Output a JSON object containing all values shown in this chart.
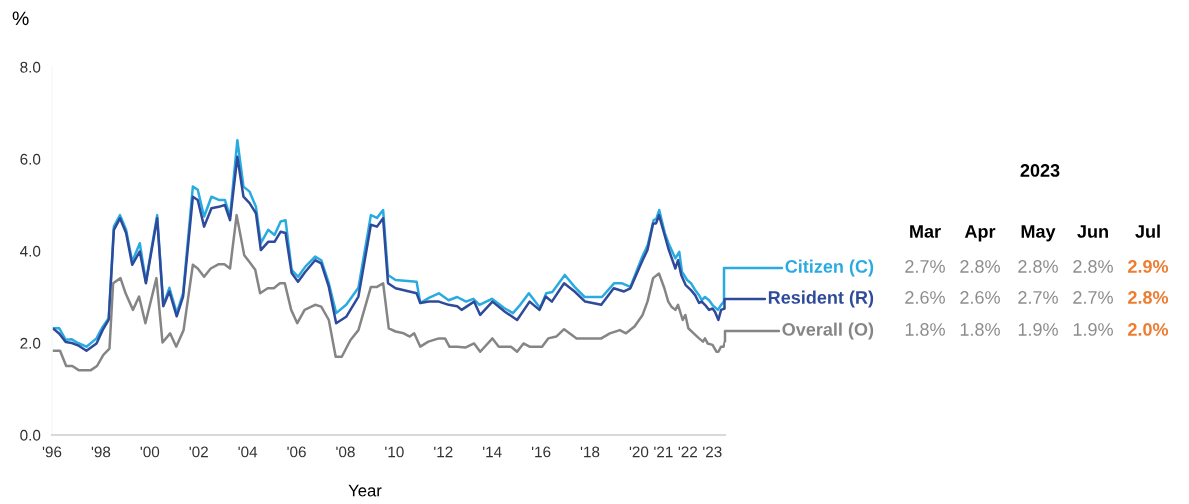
{
  "chart_data": {
    "type": "line",
    "ylabel": "%",
    "xlabel": "Year",
    "xlim": [
      1996,
      2023.52
    ],
    "ylim": [
      0,
      8
    ],
    "xticks": [
      {
        "value": 1996,
        "label": "'96"
      },
      {
        "value": 1998,
        "label": "'98"
      },
      {
        "value": 2000,
        "label": "'00"
      },
      {
        "value": 2002,
        "label": "'02"
      },
      {
        "value": 2004,
        "label": "'04"
      },
      {
        "value": 2006,
        "label": "'06"
      },
      {
        "value": 2008,
        "label": "'08"
      },
      {
        "value": 2010,
        "label": "'10"
      },
      {
        "value": 2012,
        "label": "'12"
      },
      {
        "value": 2014,
        "label": "'14"
      },
      {
        "value": 2016,
        "label": "'16"
      },
      {
        "value": 2018,
        "label": "'18"
      },
      {
        "value": 2020,
        "label": "'20"
      },
      {
        "value": 2021,
        "label": "'21"
      },
      {
        "value": 2022,
        "label": "'22"
      },
      {
        "value": 2023,
        "label": "'23"
      }
    ],
    "yticks": [
      {
        "value": 0,
        "label": "0.0"
      },
      {
        "value": 2,
        "label": "2.0"
      },
      {
        "value": 4,
        "label": "4.0"
      },
      {
        "value": 6,
        "label": "6.0"
      },
      {
        "value": 8,
        "label": "8.0"
      }
    ],
    "grid": false,
    "legend": "right",
    "marker": "none",
    "line_style": "solid",
    "series": [
      {
        "name": "Citizen (C)",
        "color": "#29abe2",
        "x": [
          1996.08,
          1996.3,
          1996.56,
          1996.81,
          1997.06,
          1997.41,
          1997.82,
          1998.07,
          1998.32,
          1998.53,
          1998.78,
          1999.03,
          1999.28,
          1999.59,
          1999.84,
          2000.3,
          2000.55,
          2000.8,
          2001.1,
          2001.36,
          2001.76,
          2001.96,
          2002.22,
          2002.52,
          2002.82,
          2003.07,
          2003.28,
          2003.58,
          2003.83,
          2004.08,
          2004.34,
          2004.54,
          2004.84,
          2005.1,
          2005.35,
          2005.55,
          2005.8,
          2006.06,
          2006.36,
          2006.76,
          2007.01,
          2007.32,
          2007.62,
          2008.03,
          2008.53,
          2009.04,
          2009.29,
          2009.54,
          2009.74,
          2010.05,
          2010.91,
          2011.06,
          2011.41,
          2011.82,
          2012.22,
          2012.57,
          2012.93,
          2013.23,
          2013.48,
          2013.99,
          2014.49,
          2014.85,
          2015.1,
          2015.5,
          2015.96,
          2016.21,
          2016.46,
          2016.97,
          2017.37,
          2017.78,
          2018.49,
          2018.99,
          2019.29,
          2019.65,
          2020.14,
          2020.36,
          2020.6,
          2020.71,
          2020.83,
          2021.06,
          2021.21,
          2021.49,
          2021.65,
          2021.76,
          2021.97,
          2022.13,
          2022.3,
          2022.46,
          2022.57,
          2022.7,
          2022.87,
          2023.0,
          2023.23,
          2023.36,
          2023.48
        ],
        "values": [
          2.32,
          2.32,
          2.07,
          2.08,
          2.0,
          1.92,
          2.1,
          2.35,
          2.54,
          4.53,
          4.78,
          4.46,
          3.77,
          4.17,
          3.33,
          4.78,
          2.83,
          3.2,
          2.65,
          3.08,
          5.4,
          5.33,
          4.75,
          5.18,
          5.11,
          5.11,
          4.75,
          6.41,
          5.4,
          5.29,
          4.96,
          4.17,
          4.46,
          4.35,
          4.64,
          4.67,
          3.59,
          3.44,
          3.66,
          3.88,
          3.8,
          3.3,
          2.65,
          2.83,
          3.2,
          4.78,
          4.72,
          4.89,
          3.48,
          3.37,
          3.33,
          2.87,
          2.98,
          3.08,
          2.93,
          3.0,
          2.9,
          2.96,
          2.83,
          2.96,
          2.76,
          2.65,
          2.8,
          3.08,
          2.76,
          3.08,
          3.11,
          3.48,
          3.22,
          3.0,
          3.0,
          3.3,
          3.3,
          3.22,
          3.88,
          4.13,
          4.67,
          4.7,
          4.89,
          4.39,
          4.17,
          3.84,
          3.98,
          3.55,
          3.37,
          3.3,
          3.15,
          3.04,
          2.93,
          3.0,
          2.93,
          2.83,
          2.72,
          2.83,
          2.9
        ]
      },
      {
        "name": "Resident (R)",
        "color": "#2e4a9a",
        "x": [
          1996.08,
          1996.3,
          1996.56,
          1996.81,
          1997.06,
          1997.41,
          1997.82,
          1998.07,
          1998.32,
          1998.53,
          1998.78,
          1999.03,
          1999.28,
          1999.59,
          1999.84,
          2000.3,
          2000.55,
          2000.8,
          2001.1,
          2001.36,
          2001.76,
          2001.96,
          2002.22,
          2002.52,
          2002.82,
          2003.07,
          2003.28,
          2003.58,
          2003.83,
          2004.08,
          2004.34,
          2004.54,
          2004.84,
          2005.1,
          2005.35,
          2005.55,
          2005.8,
          2006.06,
          2006.36,
          2006.76,
          2007.01,
          2007.32,
          2007.62,
          2008.03,
          2008.53,
          2009.04,
          2009.29,
          2009.54,
          2009.74,
          2010.05,
          2010.91,
          2011.06,
          2011.41,
          2011.82,
          2012.22,
          2012.57,
          2012.75,
          2013.26,
          2013.51,
          2014.01,
          2014.52,
          2015.02,
          2015.53,
          2015.93,
          2016.19,
          2016.44,
          2016.94,
          2017.37,
          2017.8,
          2018.46,
          2018.97,
          2019.39,
          2019.65,
          2020.15,
          2020.35,
          2020.58,
          2020.7,
          2020.82,
          2021.07,
          2021.2,
          2021.49,
          2021.6,
          2021.73,
          2021.91,
          2022.13,
          2022.3,
          2022.46,
          2022.57,
          2022.7,
          2022.87,
          2023.01,
          2023.11,
          2023.25,
          2023.36,
          2023.5
        ],
        "values": [
          2.3,
          2.2,
          2.02,
          2.0,
          1.95,
          1.83,
          1.99,
          2.28,
          2.51,
          4.46,
          4.71,
          4.39,
          3.7,
          3.99,
          3.3,
          4.71,
          2.8,
          3.12,
          2.58,
          3.01,
          5.18,
          5.11,
          4.53,
          4.93,
          4.96,
          5.0,
          4.67,
          6.05,
          5.18,
          5.04,
          4.82,
          4.02,
          4.2,
          4.2,
          4.42,
          4.39,
          3.52,
          3.33,
          3.55,
          3.8,
          3.73,
          3.22,
          2.43,
          2.57,
          3.01,
          4.57,
          4.53,
          4.71,
          3.3,
          3.19,
          3.08,
          2.87,
          2.9,
          2.9,
          2.83,
          2.8,
          2.72,
          2.9,
          2.61,
          2.9,
          2.68,
          2.5,
          2.9,
          2.72,
          3.01,
          2.9,
          3.3,
          3.12,
          2.9,
          2.83,
          3.19,
          3.12,
          3.19,
          3.8,
          4.02,
          4.6,
          4.6,
          4.78,
          4.31,
          4.06,
          3.62,
          3.8,
          3.48,
          3.26,
          3.15,
          3.04,
          2.87,
          2.9,
          2.83,
          2.72,
          2.75,
          2.68,
          2.5,
          2.72,
          2.75
        ]
      },
      {
        "name": "Overall (O)",
        "color": "#858585",
        "x": [
          1996.08,
          1996.33,
          1996.58,
          1996.83,
          1997.09,
          1997.59,
          1997.84,
          1998.1,
          1998.35,
          1998.5,
          1998.8,
          1999.01,
          1999.31,
          1999.56,
          1999.82,
          2000.27,
          2000.52,
          2000.83,
          2001.08,
          2001.38,
          2001.76,
          2001.96,
          2002.22,
          2002.49,
          2002.8,
          2003.05,
          2003.28,
          2003.55,
          2003.86,
          2004.06,
          2004.31,
          2004.51,
          2004.82,
          2005.07,
          2005.32,
          2005.52,
          2005.78,
          2006.03,
          2006.33,
          2006.76,
          2007.01,
          2007.32,
          2007.6,
          2007.85,
          2008.2,
          2008.53,
          2009.04,
          2009.29,
          2009.54,
          2009.77,
          2010.05,
          2010.38,
          2010.63,
          2010.81,
          2011.06,
          2011.39,
          2011.82,
          2012.07,
          2012.25,
          2012.57,
          2012.9,
          2013.26,
          2013.51,
          2014.01,
          2014.27,
          2014.77,
          2015.02,
          2015.28,
          2015.53,
          2016.04,
          2016.29,
          2016.62,
          2016.94,
          2017.45,
          2018.46,
          2018.81,
          2019.22,
          2019.47,
          2019.82,
          2020.15,
          2020.35,
          2020.58,
          2020.82,
          2021.04,
          2021.2,
          2021.33,
          2021.49,
          2021.6,
          2021.79,
          2021.9,
          2022.02,
          2022.24,
          2022.46,
          2022.62,
          2022.7,
          2022.81,
          2023.01,
          2023.17,
          2023.25,
          2023.36,
          2023.46,
          2023.52
        ],
        "values": [
          1.83,
          1.83,
          1.5,
          1.5,
          1.41,
          1.41,
          1.5,
          1.74,
          1.88,
          3.3,
          3.41,
          3.08,
          2.72,
          3.01,
          2.43,
          3.41,
          2.01,
          2.21,
          1.92,
          2.28,
          3.7,
          3.62,
          3.44,
          3.62,
          3.71,
          3.71,
          3.62,
          4.78,
          3.91,
          3.77,
          3.59,
          3.08,
          3.19,
          3.19,
          3.3,
          3.3,
          2.72,
          2.43,
          2.72,
          2.83,
          2.79,
          2.5,
          1.7,
          1.7,
          2.06,
          2.28,
          3.22,
          3.22,
          3.3,
          2.32,
          2.25,
          2.21,
          2.14,
          2.21,
          1.92,
          2.03,
          2.1,
          2.1,
          1.92,
          1.92,
          1.9,
          1.99,
          1.81,
          2.1,
          1.92,
          1.92,
          1.81,
          1.99,
          1.92,
          1.92,
          2.1,
          2.14,
          2.3,
          2.1,
          2.1,
          2.21,
          2.28,
          2.21,
          2.36,
          2.61,
          2.9,
          3.41,
          3.51,
          3.19,
          2.9,
          2.79,
          2.72,
          2.83,
          2.5,
          2.61,
          2.32,
          2.21,
          2.1,
          2.03,
          2.1,
          1.99,
          1.96,
          1.81,
          1.81,
          1.92,
          1.92,
          2.03
        ]
      }
    ],
    "annotations": [
      "2023",
      "Mar",
      "Apr",
      "May",
      "Jun",
      "Jul",
      "2.7%",
      "2.8%",
      "2.8%",
      "2.8%",
      "2.9%",
      "2.6%",
      "2.6%",
      "2.7%",
      "2.7%",
      "2.8%",
      "1.8%",
      "1.8%",
      "1.9%",
      "1.9%",
      "2.0%"
    ]
  }
}
